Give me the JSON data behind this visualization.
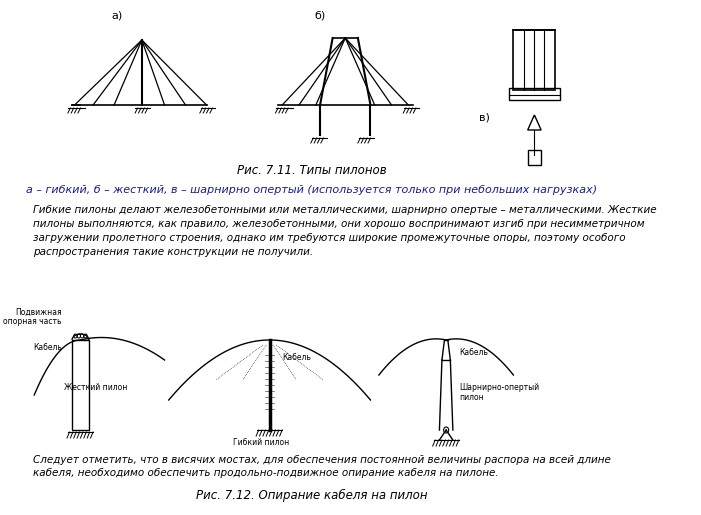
{
  "title_fig1": "Рис. 7.11. Типы пилонов",
  "subtitle_fig1": "а – гибкий, б – жесткий, в – шарнирно опертый (используется только при небольших нагрузках)",
  "body_text": "Гибкие пилоны делают железобетонными или металлическими, шарнирно опертые – металлическими. Жесткие\nпилоны выполняются, как правило, железобетонными, они хорошо воспринимают изгиб при несимметричном\nзагружении пролетного строения, однако им требуются широкие промежуточные опоры, поэтому особого\nраспространения такие конструкции не получили.",
  "bottom_text": "Следует отметить, что в висячих мостах, для обеспечения постоянной величины распора на всей длине\nкабеля, необходимо обеспечить продольно-подвижное опирание кабеля на пилоне.",
  "title_fig2": "Рис. 7.12. Опирание кабеля на пилон",
  "bg_color": "#ffffff",
  "line_color": "#000000",
  "text_color": "#000000",
  "italic_color": "#1a1a8c",
  "fig_width": 7.01,
  "fig_height": 5.15
}
